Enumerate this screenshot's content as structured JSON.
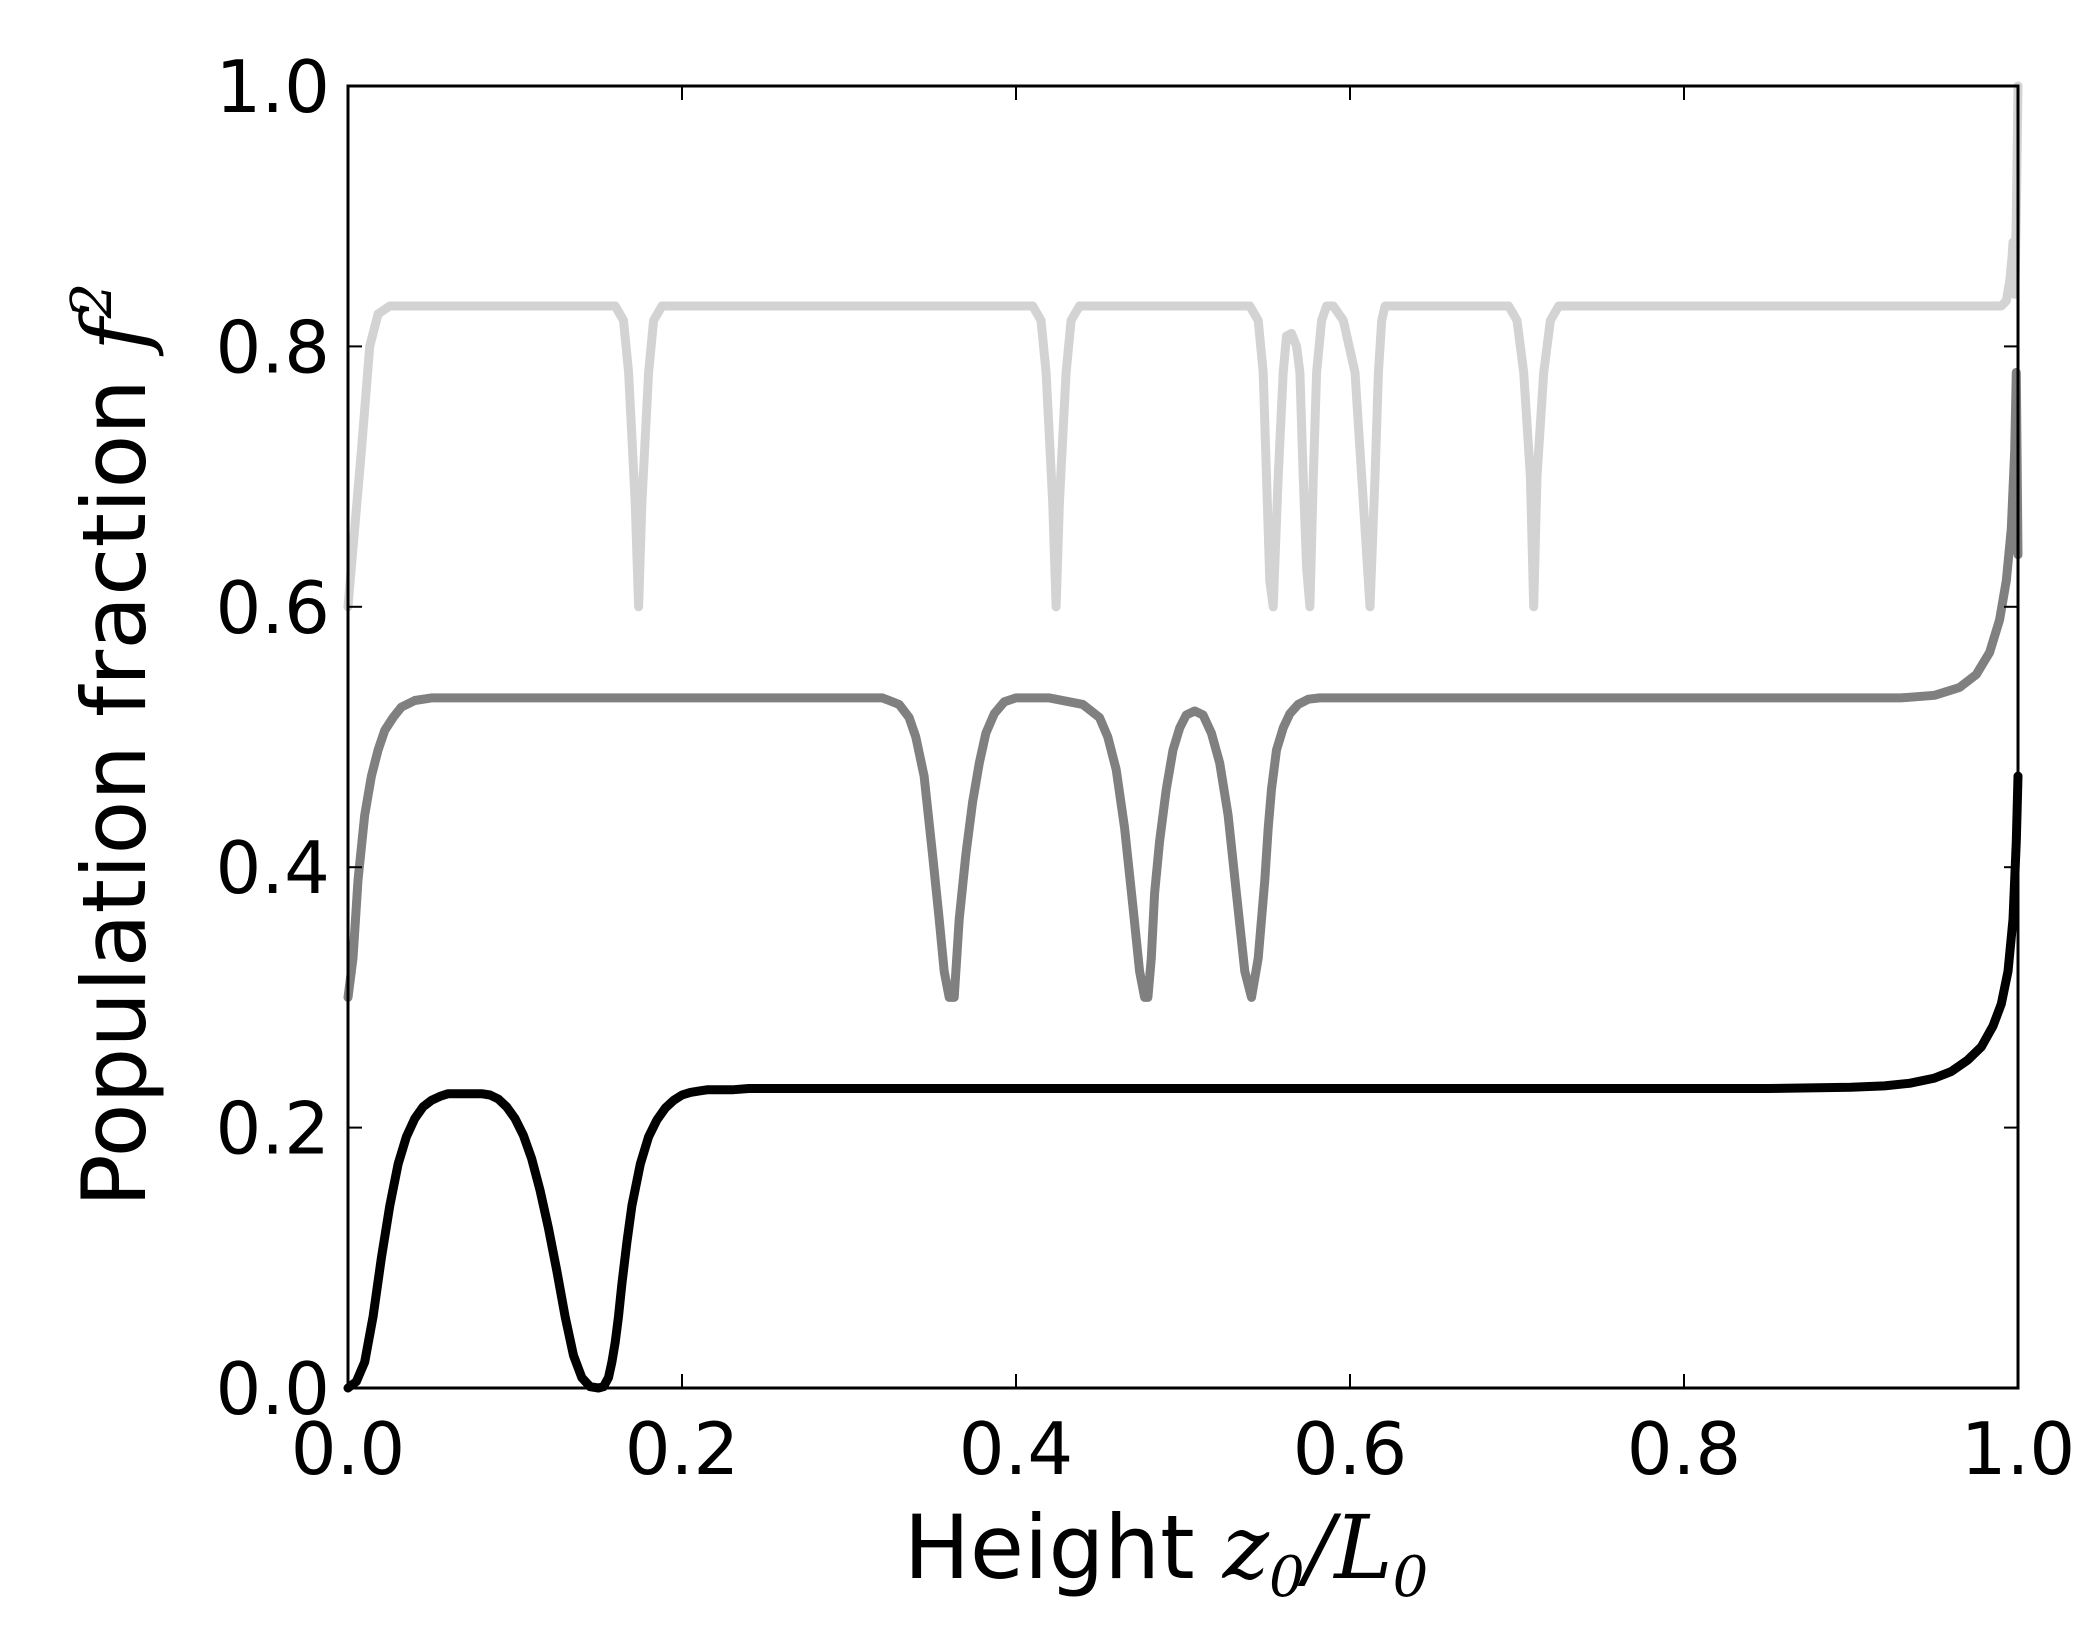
{
  "chart_data": {
    "type": "line",
    "xlabel": {
      "text": "Height ",
      "math_main": "z",
      "math_sub": "0",
      "slash": "/",
      "math_main2": "L",
      "math_sub2": "0"
    },
    "ylabel": {
      "text": "Population fraction ",
      "math_main": "f",
      "math_sup": "2"
    },
    "xlim": [
      0.0,
      1.0
    ],
    "ylim": [
      0.0,
      1.0
    ],
    "xticks": [
      "0.0",
      "0.2",
      "0.4",
      "0.6",
      "0.8",
      "1.0"
    ],
    "yticks": [
      "0.0",
      "0.2",
      "0.4",
      "0.6",
      "0.8",
      "1.0"
    ],
    "grid": false,
    "legend": false,
    "series": [
      {
        "color": "#d3d3d3",
        "x": [
          0.0,
          0.002,
          0.008,
          0.013,
          0.018,
          0.025,
          0.045,
          0.16,
          0.165,
          0.168,
          0.172,
          0.174,
          0.176,
          0.18,
          0.183,
          0.188,
          0.2,
          0.41,
          0.415,
          0.418,
          0.422,
          0.424,
          0.426,
          0.43,
          0.433,
          0.438,
          0.45,
          0.54,
          0.545,
          0.548,
          0.55,
          0.552,
          0.554,
          0.557,
          0.56,
          0.562,
          0.565,
          0.568,
          0.57,
          0.572,
          0.574,
          0.576,
          0.578,
          0.58,
          0.583,
          0.586,
          0.59,
          0.596,
          0.603,
          0.607,
          0.612,
          0.615,
          0.617,
          0.619,
          0.621,
          0.624,
          0.626,
          0.63,
          0.64,
          0.695,
          0.7,
          0.704,
          0.708,
          0.71,
          0.712,
          0.716,
          0.72,
          0.725,
          0.74,
          0.97,
          0.98,
          0.985,
          0.99,
          0.993,
          0.995,
          0.9965,
          0.997,
          0.998,
          0.999,
          1.0
        ],
        "y": [
          0.6,
          0.63,
          0.72,
          0.8,
          0.825,
          0.831,
          0.831,
          0.831,
          0.82,
          0.78,
          0.68,
          0.6,
          0.68,
          0.78,
          0.82,
          0.831,
          0.831,
          0.831,
          0.82,
          0.78,
          0.68,
          0.6,
          0.68,
          0.78,
          0.82,
          0.831,
          0.831,
          0.831,
          0.82,
          0.78,
          0.7,
          0.62,
          0.6,
          0.7,
          0.78,
          0.808,
          0.81,
          0.8,
          0.78,
          0.7,
          0.63,
          0.6,
          0.7,
          0.78,
          0.82,
          0.831,
          0.831,
          0.82,
          0.78,
          0.7,
          0.6,
          0.7,
          0.78,
          0.82,
          0.831,
          0.831,
          0.831,
          0.831,
          0.831,
          0.831,
          0.82,
          0.78,
          0.7,
          0.6,
          0.7,
          0.78,
          0.82,
          0.831,
          0.831,
          0.831,
          0.831,
          0.831,
          0.831,
          0.835,
          0.85,
          0.87,
          0.88,
          0.84,
          0.9,
          1.0
        ]
      },
      {
        "color": "#808080",
        "x": [
          0.0,
          0.003,
          0.006,
          0.01,
          0.014,
          0.018,
          0.022,
          0.027,
          0.032,
          0.04,
          0.05,
          0.06,
          0.09,
          0.3,
          0.32,
          0.33,
          0.336,
          0.34,
          0.345,
          0.35,
          0.354,
          0.357,
          0.36,
          0.363,
          0.366,
          0.37,
          0.374,
          0.378,
          0.382,
          0.387,
          0.393,
          0.4,
          0.41,
          0.42,
          0.44,
          0.45,
          0.455,
          0.46,
          0.465,
          0.47,
          0.474,
          0.477,
          0.479,
          0.481,
          0.483,
          0.486,
          0.49,
          0.494,
          0.498,
          0.502,
          0.507,
          0.512,
          0.517,
          0.522,
          0.527,
          0.532,
          0.537,
          0.541,
          0.545,
          0.549,
          0.551,
          0.553,
          0.556,
          0.56,
          0.564,
          0.569,
          0.575,
          0.582,
          0.59,
          0.6,
          0.615,
          0.64,
          0.9,
          0.93,
          0.95,
          0.965,
          0.975,
          0.983,
          0.989,
          0.993,
          0.996,
          0.998,
          0.999,
          1.0
        ],
        "y": [
          0.3,
          0.33,
          0.39,
          0.44,
          0.47,
          0.49,
          0.505,
          0.515,
          0.523,
          0.528,
          0.53,
          0.53,
          0.53,
          0.53,
          0.53,
          0.525,
          0.515,
          0.5,
          0.47,
          0.41,
          0.36,
          0.32,
          0.3,
          0.3,
          0.36,
          0.41,
          0.45,
          0.48,
          0.503,
          0.518,
          0.527,
          0.53,
          0.53,
          0.53,
          0.525,
          0.515,
          0.5,
          0.475,
          0.43,
          0.37,
          0.32,
          0.3,
          0.3,
          0.33,
          0.38,
          0.42,
          0.46,
          0.49,
          0.507,
          0.517,
          0.52,
          0.517,
          0.503,
          0.48,
          0.44,
          0.38,
          0.32,
          0.3,
          0.33,
          0.39,
          0.43,
          0.46,
          0.49,
          0.507,
          0.518,
          0.525,
          0.529,
          0.53,
          0.53,
          0.53,
          0.53,
          0.53,
          0.53,
          0.53,
          0.532,
          0.538,
          0.548,
          0.565,
          0.59,
          0.62,
          0.66,
          0.72,
          0.78,
          0.64
        ]
      },
      {
        "color": "#000000",
        "x": [
          0.0,
          0.005,
          0.01,
          0.015,
          0.02,
          0.025,
          0.03,
          0.035,
          0.04,
          0.045,
          0.05,
          0.055,
          0.06,
          0.065,
          0.07,
          0.075,
          0.08,
          0.085,
          0.09,
          0.095,
          0.1,
          0.105,
          0.11,
          0.115,
          0.12,
          0.125,
          0.13,
          0.135,
          0.14,
          0.145,
          0.15,
          0.153,
          0.156,
          0.158,
          0.16,
          0.162,
          0.164,
          0.167,
          0.17,
          0.175,
          0.18,
          0.185,
          0.19,
          0.195,
          0.2,
          0.205,
          0.21,
          0.215,
          0.22,
          0.23,
          0.24,
          0.26,
          0.3,
          0.5,
          0.7,
          0.85,
          0.9,
          0.92,
          0.935,
          0.95,
          0.96,
          0.97,
          0.978,
          0.985,
          0.99,
          0.994,
          0.997,
          0.999,
          1.0
        ],
        "y": [
          0.0,
          0.005,
          0.02,
          0.055,
          0.1,
          0.14,
          0.172,
          0.193,
          0.207,
          0.216,
          0.221,
          0.224,
          0.226,
          0.226,
          0.226,
          0.226,
          0.226,
          0.225,
          0.222,
          0.216,
          0.207,
          0.194,
          0.176,
          0.152,
          0.123,
          0.09,
          0.055,
          0.025,
          0.008,
          0.001,
          0.0,
          0.001,
          0.008,
          0.02,
          0.035,
          0.055,
          0.08,
          0.112,
          0.14,
          0.172,
          0.193,
          0.206,
          0.215,
          0.221,
          0.225,
          0.227,
          0.228,
          0.229,
          0.229,
          0.229,
          0.23,
          0.23,
          0.23,
          0.23,
          0.23,
          0.23,
          0.231,
          0.232,
          0.234,
          0.238,
          0.243,
          0.252,
          0.262,
          0.278,
          0.295,
          0.32,
          0.36,
          0.42,
          0.47
        ]
      }
    ]
  }
}
